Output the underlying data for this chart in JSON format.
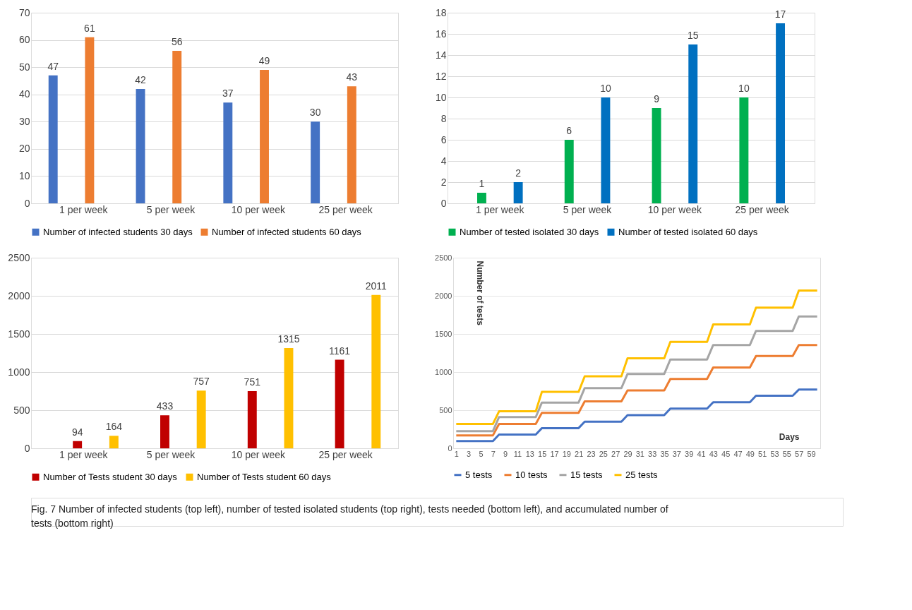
{
  "chart_data": [
    {
      "type": "bar",
      "categories": [
        "1 per week",
        "5 per week",
        "10 per week",
        "25 per week"
      ],
      "series": [
        {
          "name": "Number of infected students 30 days",
          "color": "#4472c4",
          "values": [
            47,
            42,
            37,
            30
          ]
        },
        {
          "name": "Number of infected students 60 days",
          "color": "#ed7d31",
          "values": [
            61,
            56,
            49,
            43
          ]
        }
      ],
      "ylim": [
        0,
        70
      ],
      "yticks": [
        0,
        10,
        20,
        30,
        40,
        50,
        60,
        70
      ],
      "grid": "y",
      "data_labels": true,
      "legend": "bottom"
    },
    {
      "type": "bar",
      "categories": [
        "1 per week",
        "5 per week",
        "10 per week",
        "25 per week"
      ],
      "series": [
        {
          "name": "Number of tested isolated 30 days",
          "color": "#00b050",
          "values": [
            1,
            6,
            9,
            10
          ]
        },
        {
          "name": "Number of tested isolated 60 days",
          "color": "#0070c0",
          "values": [
            2,
            10,
            15,
            17
          ]
        }
      ],
      "ylim": [
        0,
        18
      ],
      "yticks": [
        0,
        2,
        4,
        6,
        8,
        10,
        12,
        14,
        16,
        18
      ],
      "grid": "y",
      "data_labels": true,
      "legend": "bottom"
    },
    {
      "type": "bar",
      "categories": [
        "1 per week",
        "5 per week",
        "10 per week",
        "25 per week"
      ],
      "series": [
        {
          "name": "Number of Tests student 30 days",
          "color": "#c00000",
          "values": [
            94,
            433,
            751,
            1161
          ]
        },
        {
          "name": "Number of Tests student 60 days",
          "color": "#ffc000",
          "values": [
            164,
            757,
            1315,
            2011
          ]
        }
      ],
      "ylim": [
        0,
        2500
      ],
      "yticks": [
        0,
        500,
        1000,
        1500,
        2000,
        2500
      ],
      "grid": "y",
      "data_labels": true,
      "legend": "bottom"
    },
    {
      "type": "line",
      "xlabel": "Days",
      "ylabel": "Number of tests",
      "x": [
        1,
        7,
        8,
        14,
        15,
        21,
        22,
        28,
        29,
        35,
        36,
        42,
        43,
        49,
        50,
        56,
        57,
        60
      ],
      "series": [
        {
          "name": "5 tests",
          "color": "#4472c4",
          "values": [
            95,
            95,
            180,
            180,
            265,
            265,
            350,
            350,
            435,
            435,
            520,
            520,
            605,
            605,
            690,
            690,
            770,
            770
          ]
        },
        {
          "name": "10 tests",
          "color": "#ed7d31",
          "values": [
            170,
            170,
            320,
            320,
            465,
            465,
            615,
            615,
            760,
            760,
            910,
            910,
            1060,
            1060,
            1210,
            1210,
            1355,
            1355
          ]
        },
        {
          "name": "15 tests",
          "color": "#a5a5a5",
          "values": [
            225,
            225,
            410,
            410,
            600,
            600,
            790,
            790,
            975,
            975,
            1165,
            1165,
            1355,
            1355,
            1540,
            1540,
            1730,
            1730
          ]
        },
        {
          "name": "25 tests",
          "color": "#ffc000",
          "values": [
            320,
            320,
            485,
            485,
            740,
            740,
            945,
            945,
            1180,
            1180,
            1395,
            1395,
            1625,
            1625,
            1845,
            1845,
            2070,
            2070
          ]
        }
      ],
      "xlim": [
        0.5,
        60.5
      ],
      "xticks": [
        1,
        3,
        5,
        7,
        9,
        11,
        13,
        15,
        17,
        19,
        21,
        23,
        25,
        27,
        29,
        31,
        33,
        35,
        37,
        39,
        41,
        43,
        45,
        47,
        49,
        51,
        53,
        55,
        57,
        59
      ],
      "ylim": [
        0,
        2500
      ],
      "yticks": [
        0,
        500,
        1000,
        1500,
        2000,
        2500
      ],
      "grid": "y",
      "legend": "bottom",
      "annotations": [
        "Fig. 7 Number of infected students (top left), number of tested isolated students (top right), tests needed (bottom left), and accumulated number of tests (bottom right)"
      ]
    }
  ]
}
